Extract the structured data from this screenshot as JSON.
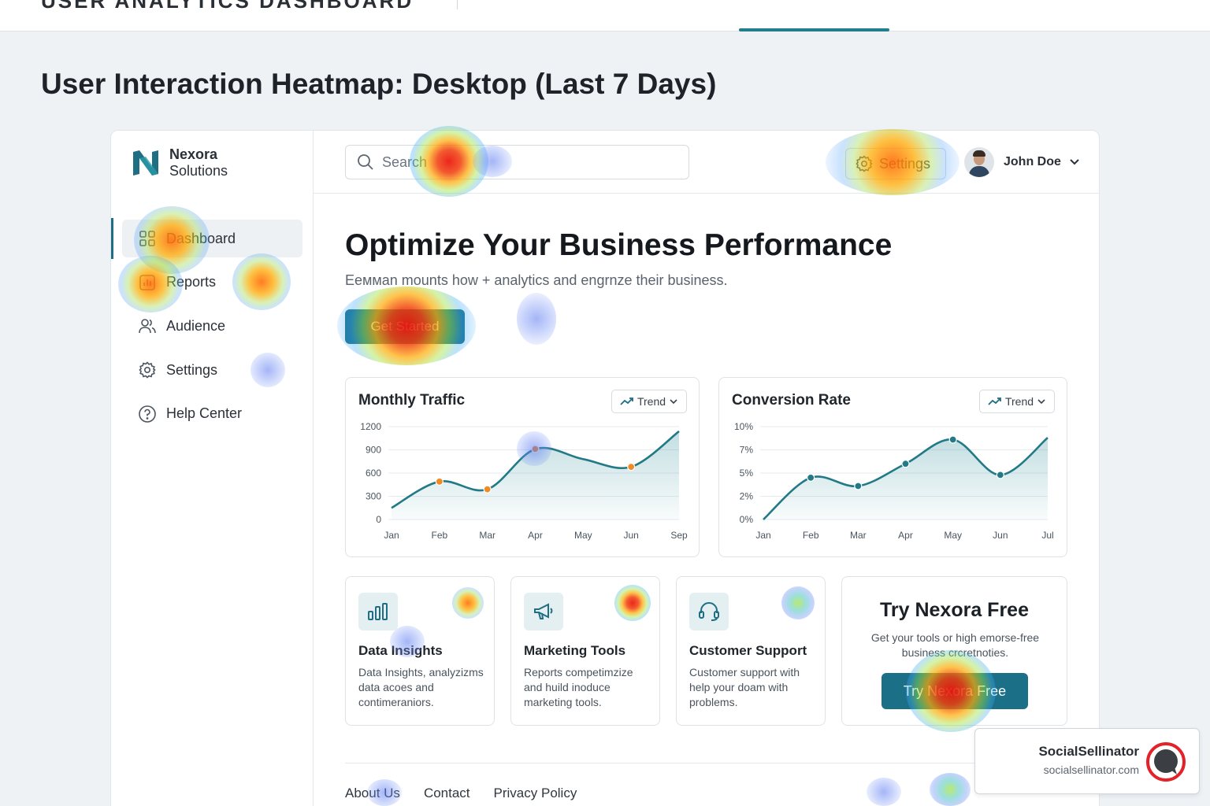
{
  "top_strip": {
    "title_fragment": "USER ANALYTICS DASHBOARD"
  },
  "page_title": "User Interaction Heatmap: Desktop (Last 7 Days)",
  "brand": {
    "line1": "Nexora",
    "line2": "Solutions"
  },
  "sidebar": {
    "items": [
      {
        "label": "Dashboard",
        "icon": "grid-icon",
        "active": true
      },
      {
        "label": "Reports",
        "icon": "bar-chart-icon",
        "active": false
      },
      {
        "label": "Audience",
        "icon": "users-icon",
        "active": false
      },
      {
        "label": "Settings",
        "icon": "gear-icon",
        "active": false
      },
      {
        "label": "Help Center",
        "icon": "help-icon",
        "active": false
      }
    ]
  },
  "header": {
    "search_placeholder": "Search",
    "settings_label": "Settings",
    "user_name": "John Doe"
  },
  "hero": {
    "title": "Optimize Your Business Performance",
    "subtitle": "Eeммan mounts how + analytics and engrnze their business.",
    "cta_label": "Get Started"
  },
  "charts": {
    "trend_label": "Trend",
    "monthly_traffic_title": "Monthly Traffic",
    "conversion_title": "Conversion Rate"
  },
  "chart_data": [
    {
      "type": "area",
      "title": "Monthly Traffic",
      "x": [
        "Jan",
        "Feb",
        "Mar",
        "Apr",
        "May",
        "Jun",
        "Sep"
      ],
      "yticks": [
        "1200",
        "900",
        "600",
        "300",
        "0"
      ],
      "ylim": [
        0,
        1200
      ],
      "series": [
        {
          "values": [
            150,
            490,
            390,
            910,
            780,
            680,
            1140
          ],
          "markers": [
            1,
            2,
            3,
            5
          ]
        }
      ],
      "grid": true
    },
    {
      "type": "area",
      "title": "Conversion Rate",
      "x": [
        "Jan",
        "Feb",
        "Mar",
        "Apr",
        "May",
        "Jun",
        "Jul"
      ],
      "yticks": [
        "10%",
        "7%",
        "5%",
        "2%",
        "0%"
      ],
      "ylim": [
        0,
        10
      ],
      "series": [
        {
          "values": [
            0,
            4.5,
            3.6,
            6.0,
            8.6,
            4.8,
            8.8
          ],
          "markers": [
            1,
            2,
            3,
            4,
            5
          ]
        }
      ],
      "grid": true
    }
  ],
  "features": [
    {
      "title": "Data Insights",
      "desc": "Data Insights, analyzizms data acoes and contimeraniors.",
      "icon": "bar-chart-icon"
    },
    {
      "title": "Marketing Tools",
      "desc": "Reports competimzize and huild inoduce marketing tools.",
      "icon": "megaphone-icon"
    },
    {
      "title": "Customer Support",
      "desc": "Customer support with help your doam with problems.",
      "icon": "headset-icon"
    }
  ],
  "promo": {
    "title": "Try Nexora Free",
    "desc": "Get your tools or high emorse-free business crcretnoties.",
    "button": "Try Nexora Free"
  },
  "footer": {
    "links": [
      "About Us",
      "Contact",
      "Privacy Policy"
    ]
  },
  "badge": {
    "name": "SocialSellinator",
    "url": "socialsellinator.com"
  },
  "colors": {
    "accent": "#1b6f86",
    "chart_line": "#227a86",
    "heat_hot": "#eb140a"
  }
}
